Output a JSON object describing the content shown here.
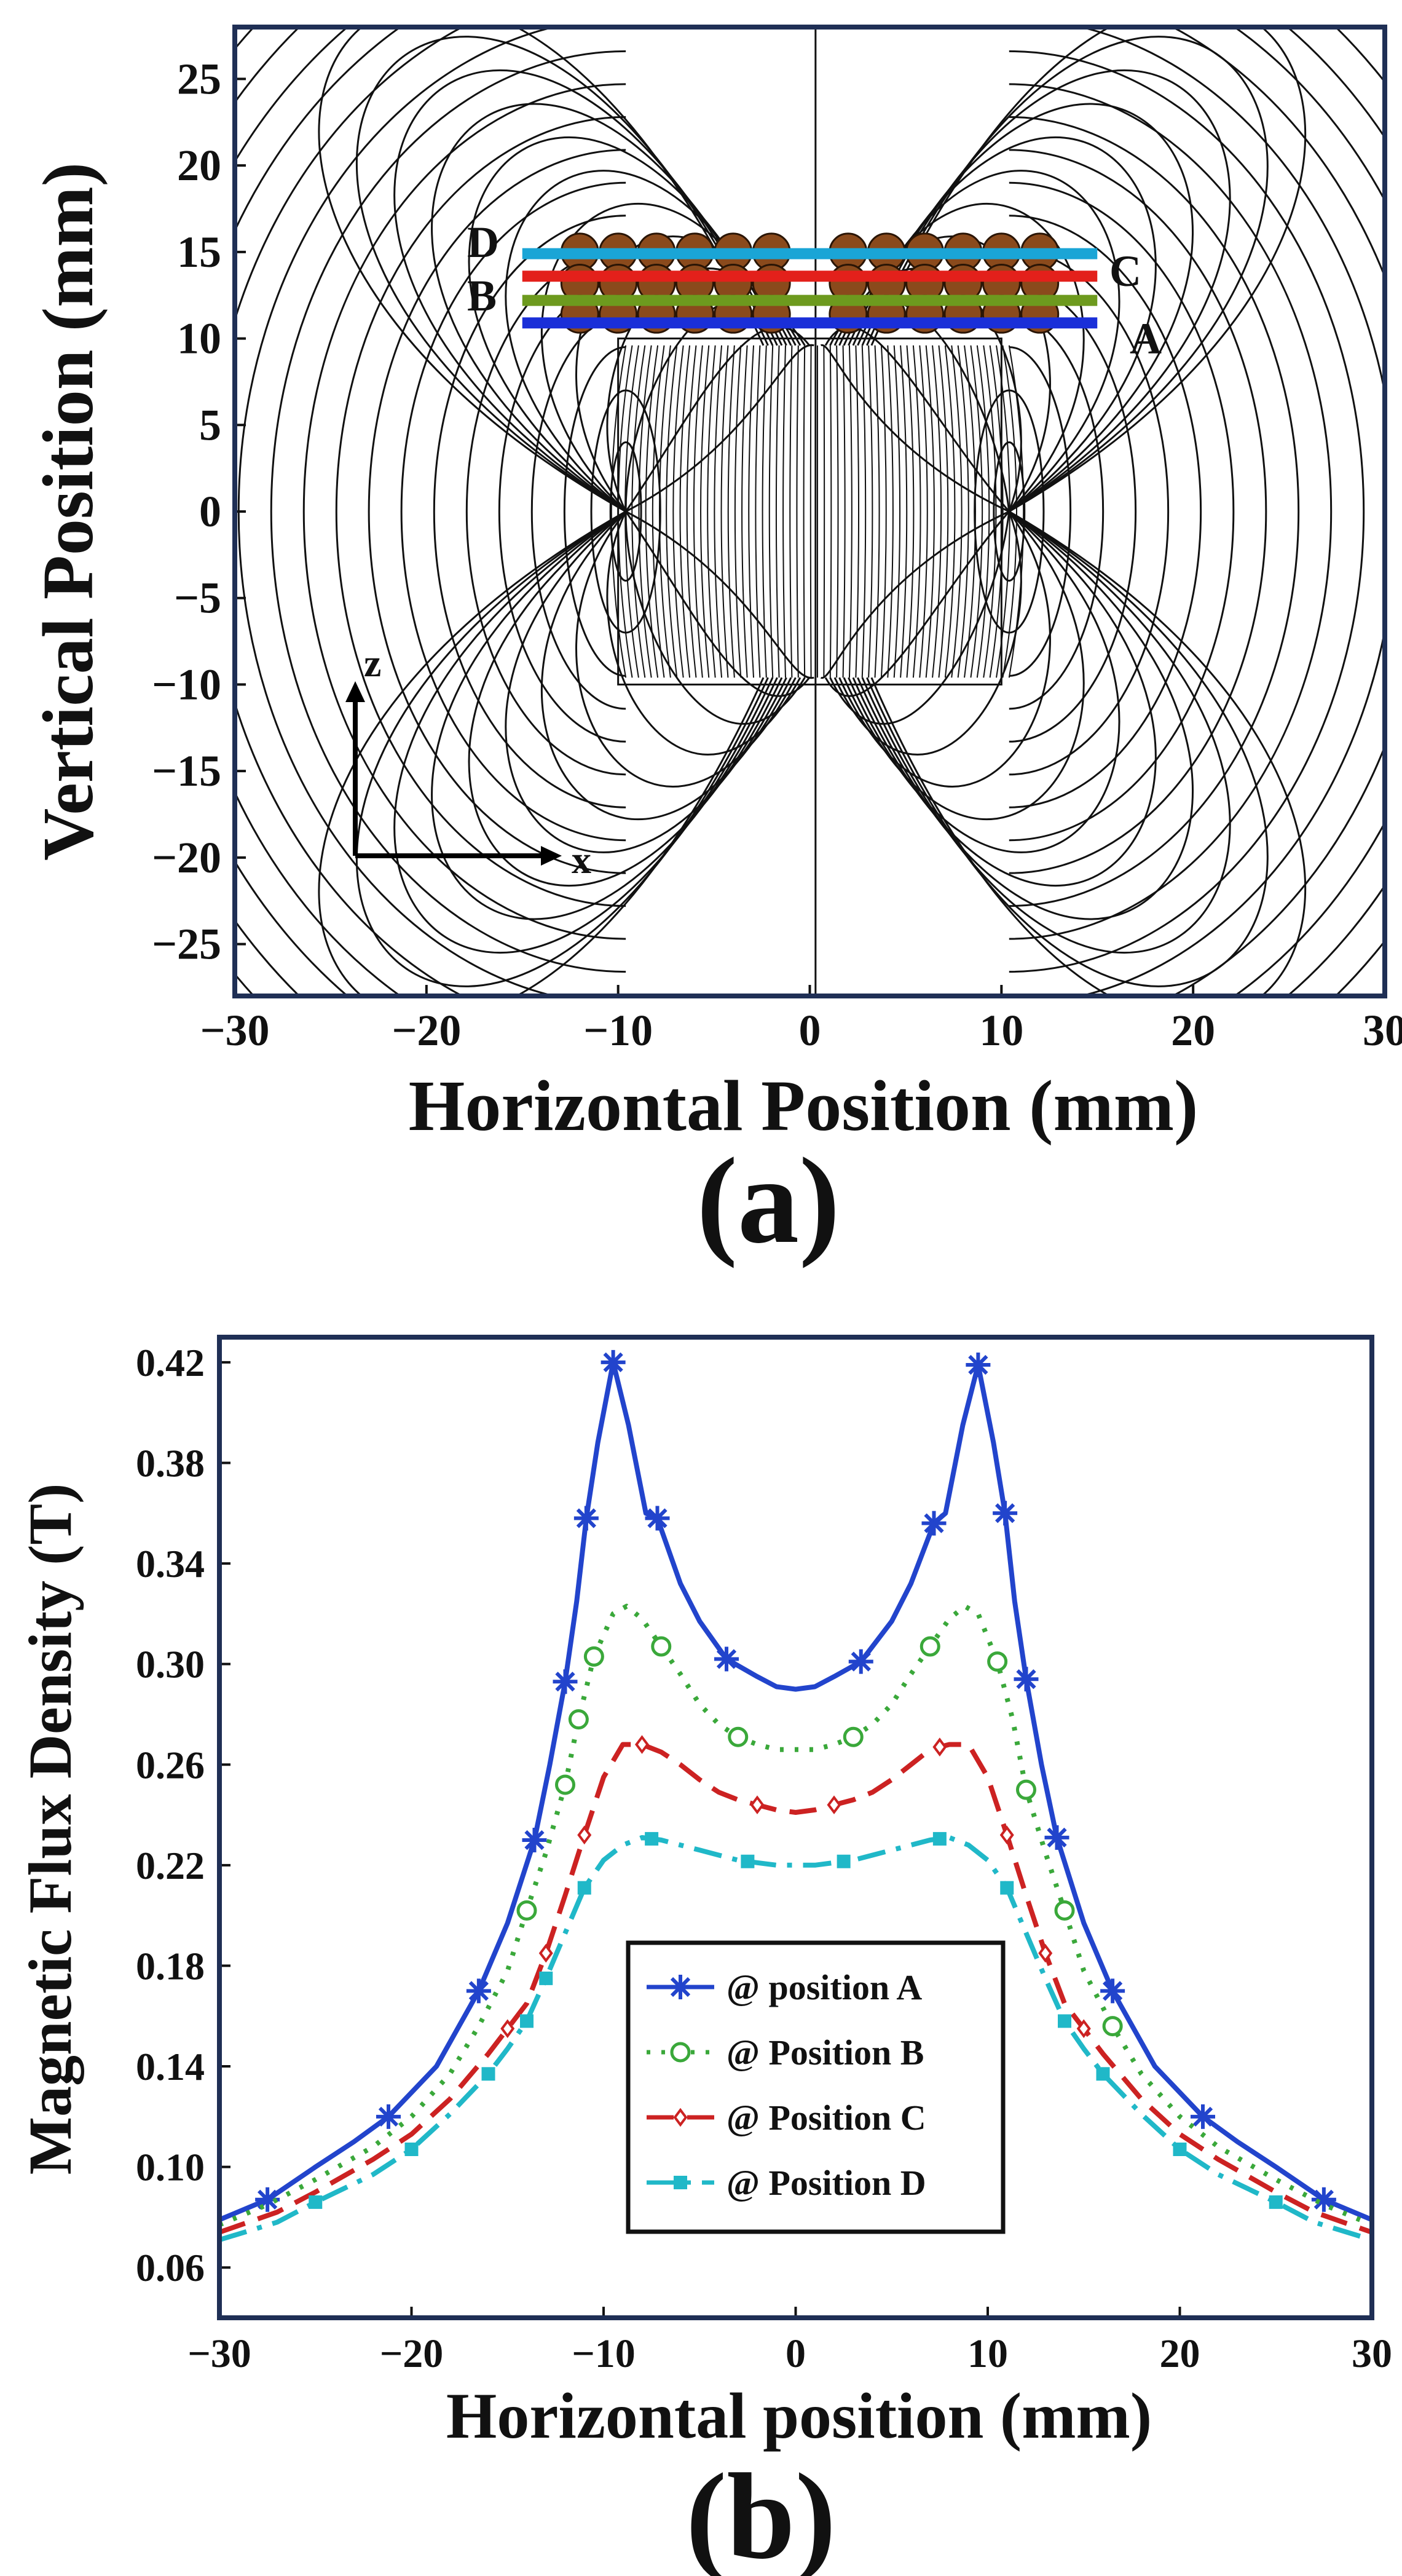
{
  "panel_a": {
    "panel_label": "(a)",
    "xlabel": "Horizontal Position (mm)",
    "ylabel": "Vertical Position (mm)",
    "xlim": [
      -30,
      30
    ],
    "ylim": [
      -28,
      28
    ],
    "x_ticks": [
      -30,
      -20,
      -10,
      0,
      10,
      20,
      30
    ],
    "x_tick_labels": [
      "−30",
      "−20",
      "−10",
      "0",
      "10",
      "20",
      "30"
    ],
    "y_ticks": [
      25,
      20,
      15,
      10,
      5,
      0,
      -5,
      -10,
      -15,
      -20,
      -25
    ],
    "y_tick_labels": [
      "25",
      "20",
      "15",
      "10",
      "5",
      "0",
      "−5",
      "−10",
      "−15",
      "−20",
      "−25"
    ],
    "magnet": {
      "x_range": [
        -10,
        10
      ],
      "z_range": [
        -10,
        10
      ]
    },
    "axis_labels": {
      "z": "z",
      "x": "x"
    },
    "coil_bead_centers_x": [
      -12,
      -10,
      -8,
      -6,
      -4,
      -2,
      2,
      4,
      6,
      8,
      10,
      12
    ],
    "coil_bead_rows_z": [
      15,
      13.2,
      11.4
    ],
    "bead_color": "#8a4a1c",
    "measurement_lines": [
      {
        "label": "A",
        "z": 10.9,
        "color": "#1a2fd8",
        "x_range": [
          -15,
          15
        ]
      },
      {
        "label": "B",
        "z": 12.2,
        "color": "#6d9a1e",
        "x_range": [
          -15,
          15
        ]
      },
      {
        "label": "C",
        "z": 13.6,
        "color": "#e3201b",
        "x_range": [
          -15,
          15
        ]
      },
      {
        "label": "D",
        "z": 14.9,
        "color": "#1aa5d6",
        "x_range": [
          -15,
          15
        ]
      }
    ]
  },
  "chart_data": {
    "type": "line",
    "panel_label": "(b)",
    "title": "",
    "xlabel": "Horizontal position (mm)",
    "ylabel": "Magnetic Flux Density (T)",
    "xlim": [
      -30,
      30
    ],
    "ylim": [
      0.04,
      0.43
    ],
    "x_ticks": [
      -30,
      -20,
      -10,
      0,
      10,
      20,
      30
    ],
    "x_tick_labels": [
      "−30",
      "−20",
      "−10",
      "0",
      "10",
      "20",
      "30"
    ],
    "y_ticks": [
      0.06,
      0.1,
      0.14,
      0.18,
      0.22,
      0.26,
      0.3,
      0.34,
      0.38,
      0.42
    ],
    "y_tick_labels": [
      "0.06",
      "0.10",
      "0.14",
      "0.18",
      "0.22",
      "0.26",
      "0.30",
      "0.34",
      "0.38",
      "0.42"
    ],
    "legend_position": "center",
    "series": [
      {
        "name": "@ position A",
        "color": "#2244cc",
        "dash": "solid",
        "marker": "asterisk",
        "x": [
          -30,
          -27.5,
          -25,
          -23,
          -21.2,
          -18.7,
          -16.5,
          -15,
          -13.6,
          -12.8,
          -12,
          -11.4,
          -10.9,
          -10.3,
          -9.5,
          -8.7,
          -7.8,
          -7.2,
          -6,
          -5,
          -3.6,
          -2,
          -1,
          0,
          1,
          2,
          3.4,
          5,
          6,
          7.2,
          7.8,
          8.7,
          9.5,
          10.3,
          10.9,
          11.4,
          12,
          12.8,
          13.6,
          15,
          16.5,
          18.7,
          21.2,
          23,
          25,
          27.5,
          30
        ],
        "y": [
          0.079,
          0.087,
          0.1,
          0.11,
          0.12,
          0.14,
          0.17,
          0.197,
          0.23,
          0.26,
          0.293,
          0.325,
          0.358,
          0.388,
          0.42,
          0.395,
          0.36,
          0.358,
          0.332,
          0.317,
          0.302,
          0.295,
          0.291,
          0.29,
          0.291,
          0.295,
          0.301,
          0.317,
          0.332,
          0.356,
          0.36,
          0.395,
          0.419,
          0.388,
          0.36,
          0.325,
          0.294,
          0.26,
          0.231,
          0.197,
          0.17,
          0.14,
          0.12,
          0.11,
          0.1,
          0.087,
          0.079
        ],
        "marker_x": [
          -27.5,
          -21.2,
          -16.5,
          -13.6,
          -12,
          -10.9,
          -9.5,
          -7.2,
          -3.6,
          3.4,
          7.2,
          9.5,
          10.9,
          12,
          13.6,
          16.5,
          21.2,
          27.5
        ]
      },
      {
        "name": "@ Position B",
        "color": "#3aa83a",
        "dash": "dot",
        "marker": "circle",
        "x": [
          -30,
          -27.5,
          -25,
          -22,
          -20,
          -18,
          -16.5,
          -15,
          -14,
          -13,
          -12,
          -11.3,
          -10.5,
          -9.5,
          -8.8,
          -8,
          -7,
          -6,
          -5,
          -4,
          -3,
          -2,
          -1,
          0,
          1,
          2,
          3,
          4,
          5,
          6,
          7,
          8,
          8.8,
          9.5,
          10.5,
          11.3,
          12,
          13,
          14,
          15,
          16.5,
          18,
          20,
          22,
          25,
          27.5,
          30
        ],
        "y": [
          0.077,
          0.085,
          0.095,
          0.108,
          0.12,
          0.137,
          0.156,
          0.178,
          0.202,
          0.225,
          0.252,
          0.278,
          0.303,
          0.32,
          0.323,
          0.318,
          0.307,
          0.296,
          0.284,
          0.276,
          0.271,
          0.268,
          0.266,
          0.266,
          0.266,
          0.268,
          0.271,
          0.276,
          0.284,
          0.296,
          0.307,
          0.318,
          0.323,
          0.32,
          0.301,
          0.278,
          0.25,
          0.225,
          0.202,
          0.178,
          0.156,
          0.137,
          0.12,
          0.108,
          0.095,
          0.085,
          0.077
        ],
        "marker_x": [
          -14,
          -12,
          -11.3,
          -10.5,
          -7,
          -3,
          3,
          7,
          10.5,
          12,
          14,
          16.5
        ]
      },
      {
        "name": "@ Position C",
        "color": "#cc2222",
        "dash": "dash",
        "marker": "diamond",
        "x": [
          -30,
          -27,
          -25,
          -22,
          -20,
          -18,
          -16,
          -15,
          -14,
          -13,
          -12,
          -11,
          -10,
          -9,
          -8,
          -7,
          -6,
          -5,
          -4,
          -3,
          -2,
          -1,
          0,
          1,
          2,
          3,
          4,
          5,
          6,
          7,
          8,
          9,
          10,
          11,
          12,
          13,
          14,
          15,
          16,
          18,
          20,
          22,
          25,
          27,
          30
        ],
        "y": [
          0.074,
          0.082,
          0.09,
          0.103,
          0.113,
          0.127,
          0.145,
          0.155,
          0.165,
          0.185,
          0.208,
          0.232,
          0.255,
          0.268,
          0.268,
          0.265,
          0.26,
          0.254,
          0.249,
          0.246,
          0.244,
          0.242,
          0.241,
          0.242,
          0.244,
          0.246,
          0.249,
          0.254,
          0.26,
          0.266,
          0.268,
          0.268,
          0.255,
          0.232,
          0.208,
          0.185,
          0.165,
          0.155,
          0.145,
          0.127,
          0.113,
          0.103,
          0.09,
          0.082,
          0.074
        ],
        "marker_x": [
          -15,
          -13,
          -11,
          -8,
          -2,
          2,
          7.5,
          11,
          13,
          15
        ]
      },
      {
        "name": "@ Position D",
        "color": "#20b8c8",
        "dash": "dashdot",
        "marker": "square",
        "x": [
          -30,
          -27,
          -25,
          -22,
          -20,
          -18,
          -16,
          -15,
          -14,
          -13,
          -12,
          -11,
          -10,
          -9,
          -8,
          -7,
          -6,
          -5,
          -4,
          -3,
          -2,
          -1,
          0,
          1,
          2,
          3,
          4,
          5,
          6,
          7,
          8,
          9,
          10,
          11,
          12,
          13,
          14,
          15,
          16,
          18,
          20,
          22,
          25,
          27,
          30
        ],
        "y": [
          0.071,
          0.078,
          0.086,
          0.097,
          0.107,
          0.121,
          0.137,
          0.147,
          0.158,
          0.175,
          0.193,
          0.211,
          0.222,
          0.228,
          0.231,
          0.23,
          0.228,
          0.226,
          0.224,
          0.222,
          0.221,
          0.22,
          0.22,
          0.22,
          0.221,
          0.222,
          0.224,
          0.226,
          0.228,
          0.23,
          0.231,
          0.228,
          0.222,
          0.211,
          0.193,
          0.175,
          0.158,
          0.147,
          0.137,
          0.121,
          0.107,
          0.097,
          0.086,
          0.078,
          0.071
        ],
        "marker_x": [
          -25,
          -20,
          -16,
          -14,
          -13,
          -11,
          -7.5,
          -2.5,
          2.5,
          7.5,
          11,
          14,
          16,
          20,
          25
        ]
      }
    ]
  }
}
